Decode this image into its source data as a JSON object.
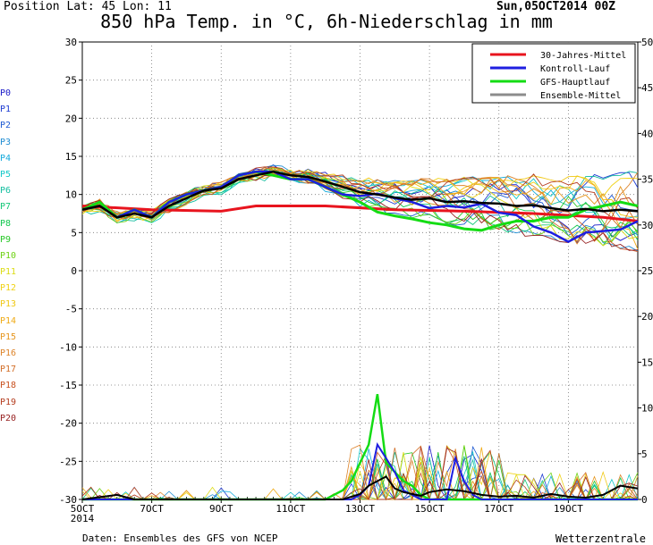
{
  "header": {
    "position_text": "Position   Lat: 45 Lon: 11",
    "title": "850 hPa Temp. in °C, 6h-Niederschlag in mm",
    "date": "Sun,05OCT2014 00Z"
  },
  "footer": {
    "source": "Daten: Ensembles des GFS von NCEP",
    "brand": "Wetterzentrale"
  },
  "members": [
    {
      "label": "P0",
      "color": "#1a1ac8"
    },
    {
      "label": "P1",
      "color": "#1e3cd2"
    },
    {
      "label": "P2",
      "color": "#1e5ad2"
    },
    {
      "label": "P3",
      "color": "#1e8cd2"
    },
    {
      "label": "P4",
      "color": "#14aadc"
    },
    {
      "label": "P5",
      "color": "#14c8c8"
    },
    {
      "label": "P6",
      "color": "#14bea0"
    },
    {
      "label": "P7",
      "color": "#14c878"
    },
    {
      "label": "P8",
      "color": "#14c850"
    },
    {
      "label": "P9",
      "color": "#28c828"
    },
    {
      "label": "P10",
      "color": "#6ed214"
    },
    {
      "label": "P11",
      "color": "#dcdc14"
    },
    {
      "label": "P12",
      "color": "#f0d214"
    },
    {
      "label": "P13",
      "color": "#f0c814"
    },
    {
      "label": "P14",
      "color": "#f0aa14"
    },
    {
      "label": "P15",
      "color": "#e6961e"
    },
    {
      "label": "P16",
      "color": "#dc8228"
    },
    {
      "label": "P17",
      "color": "#d26e28"
    },
    {
      "label": "P18",
      "color": "#c8501e"
    },
    {
      "label": "P19",
      "color": "#b43c1e"
    },
    {
      "label": "P20",
      "color": "#961e1e"
    }
  ],
  "chart_data": {
    "type": "line",
    "y_left_range": [
      -30,
      30
    ],
    "y_left_ticks": [
      "30",
      "25",
      "20",
      "15",
      "10",
      "5",
      "0",
      "-5",
      "-10",
      "-15",
      "-20",
      "-25",
      "-30"
    ],
    "y_right_range": [
      0,
      50
    ],
    "y_right_ticks": [
      "50",
      "45",
      "40",
      "35",
      "30",
      "25",
      "20",
      "15",
      "10",
      "5",
      "0"
    ],
    "x_range_hours": [
      0,
      384
    ],
    "x_ticks": [
      {
        "h": 0,
        "label": "5OCT",
        "label2": "2014"
      },
      {
        "h": 48,
        "label": "7OCT"
      },
      {
        "h": 96,
        "label": "9OCT"
      },
      {
        "h": 144,
        "label": "11OCT"
      },
      {
        "h": 192,
        "label": "13OCT"
      },
      {
        "h": 240,
        "label": "15OCT"
      },
      {
        "h": 288,
        "label": "17OCT"
      },
      {
        "h": 336,
        "label": "19OCT"
      }
    ],
    "grid": "dotted",
    "legend": {
      "position": "top-right",
      "items": [
        {
          "label": "30-Jahres-Mittel",
          "color": "#e8141e"
        },
        {
          "label": "Kontroll-Lauf",
          "color": "#1e1ee0"
        },
        {
          "label": "GFS-Hauptlauf",
          "color": "#14dc14"
        },
        {
          "label": "Ensemble-Mittel",
          "color": "#8c8c8c"
        }
      ]
    },
    "temperature_series": {
      "climate_mean": [
        [
          0,
          8.5
        ],
        [
          48,
          8.0
        ],
        [
          96,
          7.8
        ],
        [
          120,
          8.5
        ],
        [
          168,
          8.5
        ],
        [
          216,
          8.0
        ],
        [
          264,
          7.8
        ],
        [
          312,
          7.5
        ],
        [
          360,
          7.0
        ],
        [
          384,
          6.5
        ]
      ],
      "ensemble_mean": [
        [
          0,
          8
        ],
        [
          12,
          8.5
        ],
        [
          24,
          7
        ],
        [
          36,
          7.5
        ],
        [
          48,
          7
        ],
        [
          60,
          8.5
        ],
        [
          72,
          9.5
        ],
        [
          84,
          10.5
        ],
        [
          96,
          10.8
        ],
        [
          108,
          12
        ],
        [
          120,
          12.5
        ],
        [
          132,
          13
        ],
        [
          144,
          12.5
        ],
        [
          156,
          12.3
        ],
        [
          168,
          11.7
        ],
        [
          180,
          11
        ],
        [
          192,
          10.3
        ],
        [
          204,
          10
        ],
        [
          216,
          9.6
        ],
        [
          228,
          9.3
        ],
        [
          240,
          9.5
        ],
        [
          252,
          9.0
        ],
        [
          264,
          9.1
        ],
        [
          276,
          8.9
        ],
        [
          288,
          8.8
        ],
        [
          300,
          8.5
        ],
        [
          312,
          8.6
        ],
        [
          324,
          8.2
        ],
        [
          336,
          7.9
        ],
        [
          348,
          8.1
        ],
        [
          360,
          7.8
        ],
        [
          372,
          8.0
        ],
        [
          384,
          7.8
        ]
      ],
      "control_run": [
        [
          0,
          8
        ],
        [
          12,
          8.5
        ],
        [
          24,
          7
        ],
        [
          36,
          8
        ],
        [
          48,
          7
        ],
        [
          60,
          9
        ],
        [
          72,
          10
        ],
        [
          84,
          10.5
        ],
        [
          96,
          11
        ],
        [
          108,
          12.5
        ],
        [
          120,
          13
        ],
        [
          132,
          13
        ],
        [
          144,
          12
        ],
        [
          156,
          12
        ],
        [
          168,
          11
        ],
        [
          180,
          10
        ],
        [
          192,
          9.8
        ],
        [
          204,
          10.1
        ],
        [
          216,
          9.5
        ],
        [
          228,
          9
        ],
        [
          240,
          8.2
        ],
        [
          252,
          8.5
        ],
        [
          264,
          8.3
        ],
        [
          276,
          8.8
        ],
        [
          288,
          7.6
        ],
        [
          300,
          7.3
        ],
        [
          312,
          5.8
        ],
        [
          324,
          5
        ],
        [
          336,
          3.8
        ],
        [
          348,
          5
        ],
        [
          360,
          5.2
        ],
        [
          372,
          5.4
        ],
        [
          384,
          6.5
        ]
      ],
      "gfs_main": [
        [
          0,
          8
        ],
        [
          12,
          9
        ],
        [
          24,
          7
        ],
        [
          36,
          8
        ],
        [
          48,
          7
        ],
        [
          60,
          9
        ],
        [
          72,
          10
        ],
        [
          84,
          10.5
        ],
        [
          96,
          11
        ],
        [
          108,
          12.5
        ],
        [
          120,
          13
        ],
        [
          132,
          12.5
        ],
        [
          144,
          12
        ],
        [
          156,
          12
        ],
        [
          168,
          11
        ],
        [
          180,
          10
        ],
        [
          192,
          9
        ],
        [
          204,
          7.7
        ],
        [
          216,
          7.2
        ],
        [
          228,
          6.8
        ],
        [
          240,
          6.3
        ],
        [
          252,
          6.0
        ],
        [
          264,
          5.5
        ],
        [
          276,
          5.3
        ],
        [
          288,
          6
        ],
        [
          300,
          6.5
        ],
        [
          312,
          6.5
        ],
        [
          324,
          7
        ],
        [
          336,
          7
        ],
        [
          348,
          8
        ],
        [
          360,
          8.5
        ],
        [
          372,
          9.0
        ],
        [
          384,
          8.5
        ]
      ]
    },
    "precipitation_series": {
      "gfs_main": [
        [
          0,
          0
        ],
        [
          168,
          0
        ],
        [
          180,
          1
        ],
        [
          186,
          2
        ],
        [
          192,
          4
        ],
        [
          198,
          6
        ],
        [
          204,
          11.5
        ],
        [
          210,
          4
        ],
        [
          216,
          3
        ],
        [
          222,
          2
        ],
        [
          228,
          1.5
        ],
        [
          234,
          0.5
        ],
        [
          240,
          0
        ],
        [
          384,
          0
        ]
      ],
      "control_run": [
        [
          0,
          0
        ],
        [
          186,
          0
        ],
        [
          192,
          0.5
        ],
        [
          198,
          1.5
        ],
        [
          204,
          6
        ],
        [
          210,
          4.5
        ],
        [
          216,
          3
        ],
        [
          222,
          1
        ],
        [
          228,
          0.5
        ],
        [
          234,
          0
        ],
        [
          252,
          0
        ],
        [
          258,
          4.5
        ],
        [
          264,
          2
        ],
        [
          270,
          0.5
        ],
        [
          276,
          0
        ],
        [
          384,
          0
        ]
      ],
      "ensemble_mean": [
        [
          0,
          0
        ],
        [
          24,
          0.5
        ],
        [
          36,
          0
        ],
        [
          180,
          0
        ],
        [
          192,
          0.6
        ],
        [
          198,
          1.5
        ],
        [
          204,
          2
        ],
        [
          210,
          2.5
        ],
        [
          216,
          1.2
        ],
        [
          222,
          0.8
        ],
        [
          228,
          0.6
        ],
        [
          234,
          0.4
        ],
        [
          240,
          0.8
        ],
        [
          252,
          1.1
        ],
        [
          264,
          0.9
        ],
        [
          276,
          0.5
        ],
        [
          288,
          0.3
        ],
        [
          300,
          0.4
        ],
        [
          312,
          0.2
        ],
        [
          324,
          0.6
        ],
        [
          336,
          0.3
        ],
        [
          348,
          0.2
        ],
        [
          360,
          0.5
        ],
        [
          372,
          1.5
        ],
        [
          384,
          1.2
        ]
      ]
    }
  }
}
